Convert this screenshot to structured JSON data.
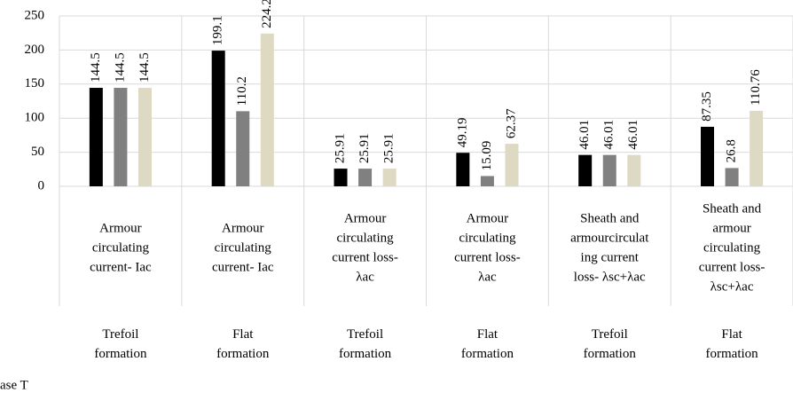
{
  "chart_data": {
    "type": "bar",
    "categories": [
      [
        "Armour",
        "circulating",
        "current- Iac"
      ],
      [
        "Armour",
        "circulating",
        "current- Iac"
      ],
      [
        "Armour",
        "circulating",
        "current loss-",
        "λac"
      ],
      [
        "Armour",
        "circulating",
        "current loss-",
        "λac"
      ],
      [
        "Sheath and",
        "armourcirculat",
        "ing current",
        "loss- λsc+λac"
      ],
      [
        "Sheath and",
        "armour",
        "circulating",
        "current loss-",
        "λsc+λac"
      ]
    ],
    "groups": [
      "Trefoil\nformation",
      "Flat\nformation",
      "Trefoil\nformation",
      "Flat\nformation",
      "Trefoil\nformation",
      "Flat\nformation"
    ],
    "legend_fragment": "ase T",
    "series": [
      {
        "color": "#000000",
        "values": [
          144.5,
          199.1,
          25.91,
          49.19,
          46.01,
          87.35
        ]
      },
      {
        "color": "#808080",
        "values": [
          144.5,
          110.2,
          25.91,
          15.09,
          46.01,
          26.8
        ]
      },
      {
        "color": "#ddd9c3",
        "values": [
          144.5,
          224.2,
          25.91,
          62.37,
          46.01,
          110.76
        ]
      }
    ],
    "ylim": [
      0,
      250
    ],
    "yticks": [
      0,
      50,
      100,
      150,
      200,
      250
    ],
    "grid": true
  }
}
